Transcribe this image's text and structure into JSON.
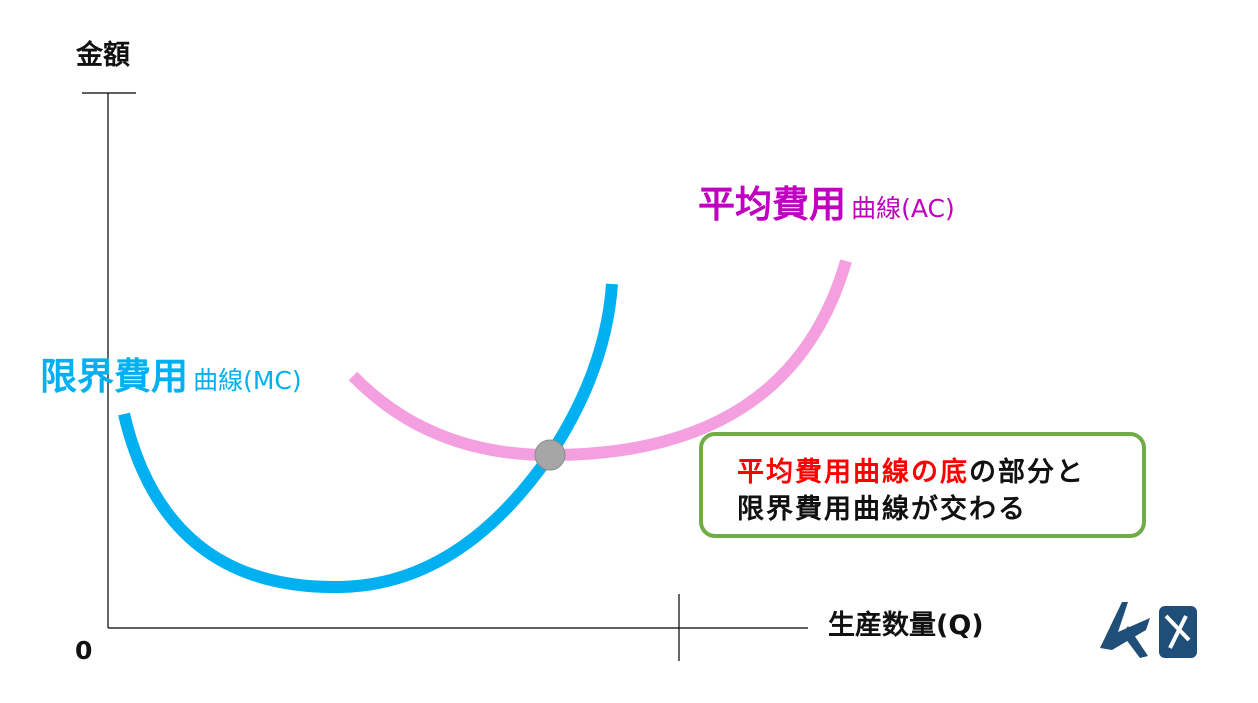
{
  "axes": {
    "y_label": "金額",
    "x_label": "生産数量(Q)",
    "origin": "0"
  },
  "curves": {
    "mc": {
      "name": "限界費用",
      "suffix": "曲線(MC)",
      "color": "#00b0f0"
    },
    "ac": {
      "name": "平均費用",
      "suffix": "曲線(AC)",
      "color": "#f4a0e0",
      "label_color": "#c000c0"
    }
  },
  "intersection": {
    "color": "#a6a6a6"
  },
  "callout": {
    "highlight": "平均費用曲線の底",
    "line1_rest": "の部分と",
    "line2": "限界費用曲線が交わる",
    "highlight_color": "#ff0000",
    "border_color": "#70ad47"
  },
  "logo": {
    "color": "#1f4e79"
  }
}
